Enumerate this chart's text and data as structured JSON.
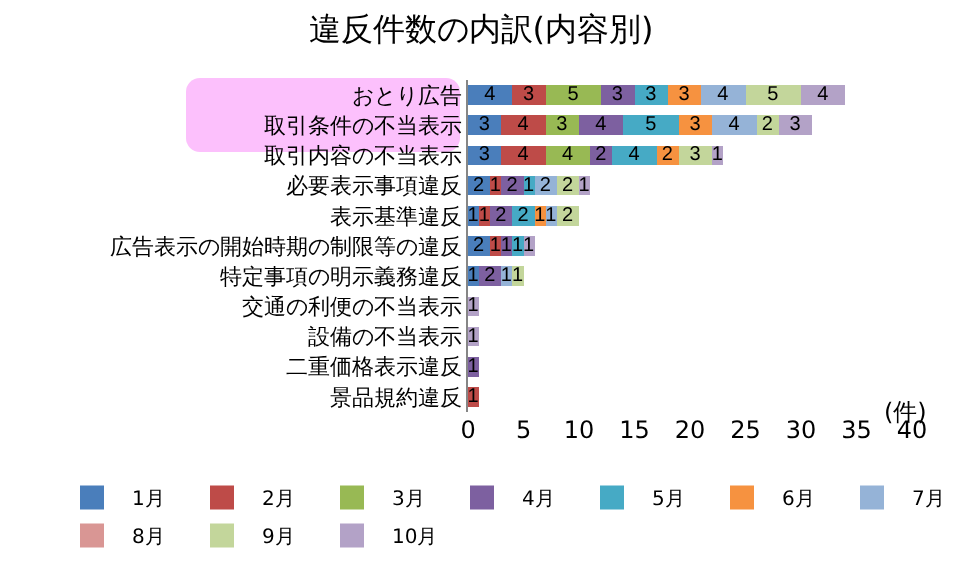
{
  "chart_data": {
    "type": "bar",
    "orientation": "horizontal",
    "stacked": true,
    "title": "違反件数の内訳(内容別)",
    "xlabel": "(件)",
    "categories": [
      "おとり広告",
      "取引条件の不当表示",
      "取引内容の不当表示",
      "必要表示事項違反",
      "表示基準違反",
      "広告表示の開始時期の制限等の違反",
      "特定事項の明示義務違反",
      "交通の利便の不当表示",
      "設備の不当表示",
      "二重価格表示違反",
      "景品規約違反"
    ],
    "series": [
      {
        "name": "1月",
        "color": "#4a7ebb",
        "values": [
          4,
          3,
          3,
          2,
          1,
          2,
          1,
          null,
          null,
          null,
          null
        ]
      },
      {
        "name": "2月",
        "color": "#be4b48",
        "values": [
          3,
          4,
          4,
          1,
          1,
          1,
          null,
          null,
          null,
          null,
          1
        ]
      },
      {
        "name": "3月",
        "color": "#98b954",
        "values": [
          5,
          3,
          4,
          null,
          null,
          null,
          null,
          null,
          null,
          null,
          null
        ]
      },
      {
        "name": "4月",
        "color": "#7d60a0",
        "values": [
          3,
          4,
          2,
          2,
          2,
          1,
          2,
          null,
          null,
          1,
          null
        ]
      },
      {
        "name": "5月",
        "color": "#46aac5",
        "values": [
          3,
          5,
          4,
          1,
          2,
          1,
          null,
          null,
          null,
          null,
          null
        ]
      },
      {
        "name": "6月",
        "color": "#f69240",
        "values": [
          3,
          3,
          2,
          null,
          1,
          null,
          null,
          null,
          null,
          null,
          null
        ]
      },
      {
        "name": "7月",
        "color": "#95b3d7",
        "values": [
          4,
          4,
          null,
          2,
          1,
          null,
          1,
          null,
          null,
          null,
          null
        ]
      },
      {
        "name": "8月",
        "color": "#d99694",
        "values": [
          null,
          null,
          null,
          null,
          null,
          null,
          null,
          null,
          null,
          null,
          null
        ]
      },
      {
        "name": "9月",
        "color": "#c3d69b",
        "values": [
          5,
          2,
          3,
          2,
          2,
          null,
          1,
          null,
          null,
          null,
          null
        ]
      },
      {
        "name": "10月",
        "color": "#b3a2c7",
        "values": [
          4,
          3,
          1,
          1,
          null,
          1,
          null,
          1,
          1,
          null,
          null
        ]
      }
    ],
    "xlim": [
      0,
      40
    ],
    "xticks": [
      0,
      5,
      10,
      15,
      20,
      25,
      30,
      35,
      40
    ],
    "grid": false,
    "legend": "bottom",
    "data_labels": true
  }
}
